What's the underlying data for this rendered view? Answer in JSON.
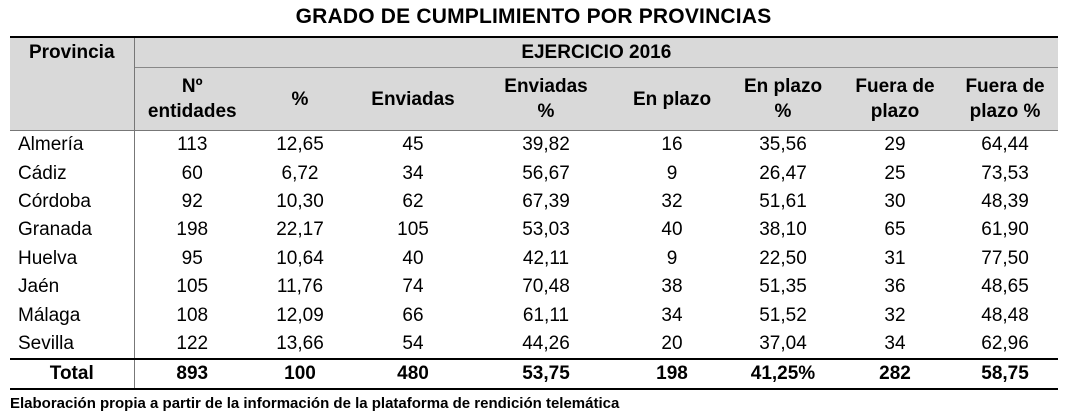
{
  "title": "GRADO DE CUMPLIMIENTO POR PROVINCIAS",
  "table": {
    "group_header": "EJERCICIO 2016",
    "province_header": "Provincia",
    "columns": [
      {
        "line1": "Nº",
        "line2": "entidades"
      },
      {
        "line1": "%",
        "line2": ""
      },
      {
        "line1": "Enviadas",
        "line2": ""
      },
      {
        "line1": "Enviadas",
        "line2": "%"
      },
      {
        "line1": "En plazo",
        "line2": ""
      },
      {
        "line1": "En plazo",
        "line2": "%"
      },
      {
        "line1": "Fuera de",
        "line2": "plazo"
      },
      {
        "line1": "Fuera de",
        "line2": "plazo %"
      }
    ],
    "rows": [
      {
        "provincia": "Almería",
        "values": [
          "113",
          "12,65",
          "45",
          "39,82",
          "16",
          "35,56",
          "29",
          "64,44"
        ]
      },
      {
        "provincia": "Cádiz",
        "values": [
          "60",
          "6,72",
          "34",
          "56,67",
          "9",
          "26,47",
          "25",
          "73,53"
        ]
      },
      {
        "provincia": "Córdoba",
        "values": [
          "92",
          "10,30",
          "62",
          "67,39",
          "32",
          "51,61",
          "30",
          "48,39"
        ]
      },
      {
        "provincia": "Granada",
        "values": [
          "198",
          "22,17",
          "105",
          "53,03",
          "40",
          "38,10",
          "65",
          "61,90"
        ]
      },
      {
        "provincia": "Huelva",
        "values": [
          "95",
          "10,64",
          "40",
          "42,11",
          "9",
          "22,50",
          "31",
          "77,50"
        ]
      },
      {
        "provincia": "Jaén",
        "values": [
          "105",
          "11,76",
          "74",
          "70,48",
          "38",
          "51,35",
          "36",
          "48,65"
        ]
      },
      {
        "provincia": "Málaga",
        "values": [
          "108",
          "12,09",
          "66",
          "61,11",
          "34",
          "51,52",
          "32",
          "48,48"
        ]
      },
      {
        "provincia": "Sevilla",
        "values": [
          "122",
          "13,66",
          "54",
          "44,26",
          "20",
          "37,04",
          "34",
          "62,96"
        ]
      }
    ],
    "total": {
      "provincia": "Total",
      "values": [
        "893",
        "100",
        "480",
        "53,75",
        "198",
        "41,25%",
        "282",
        "58,75"
      ]
    }
  },
  "footnote": "Elaboración propia a partir de la información de la plataforma de rendición telemática"
}
